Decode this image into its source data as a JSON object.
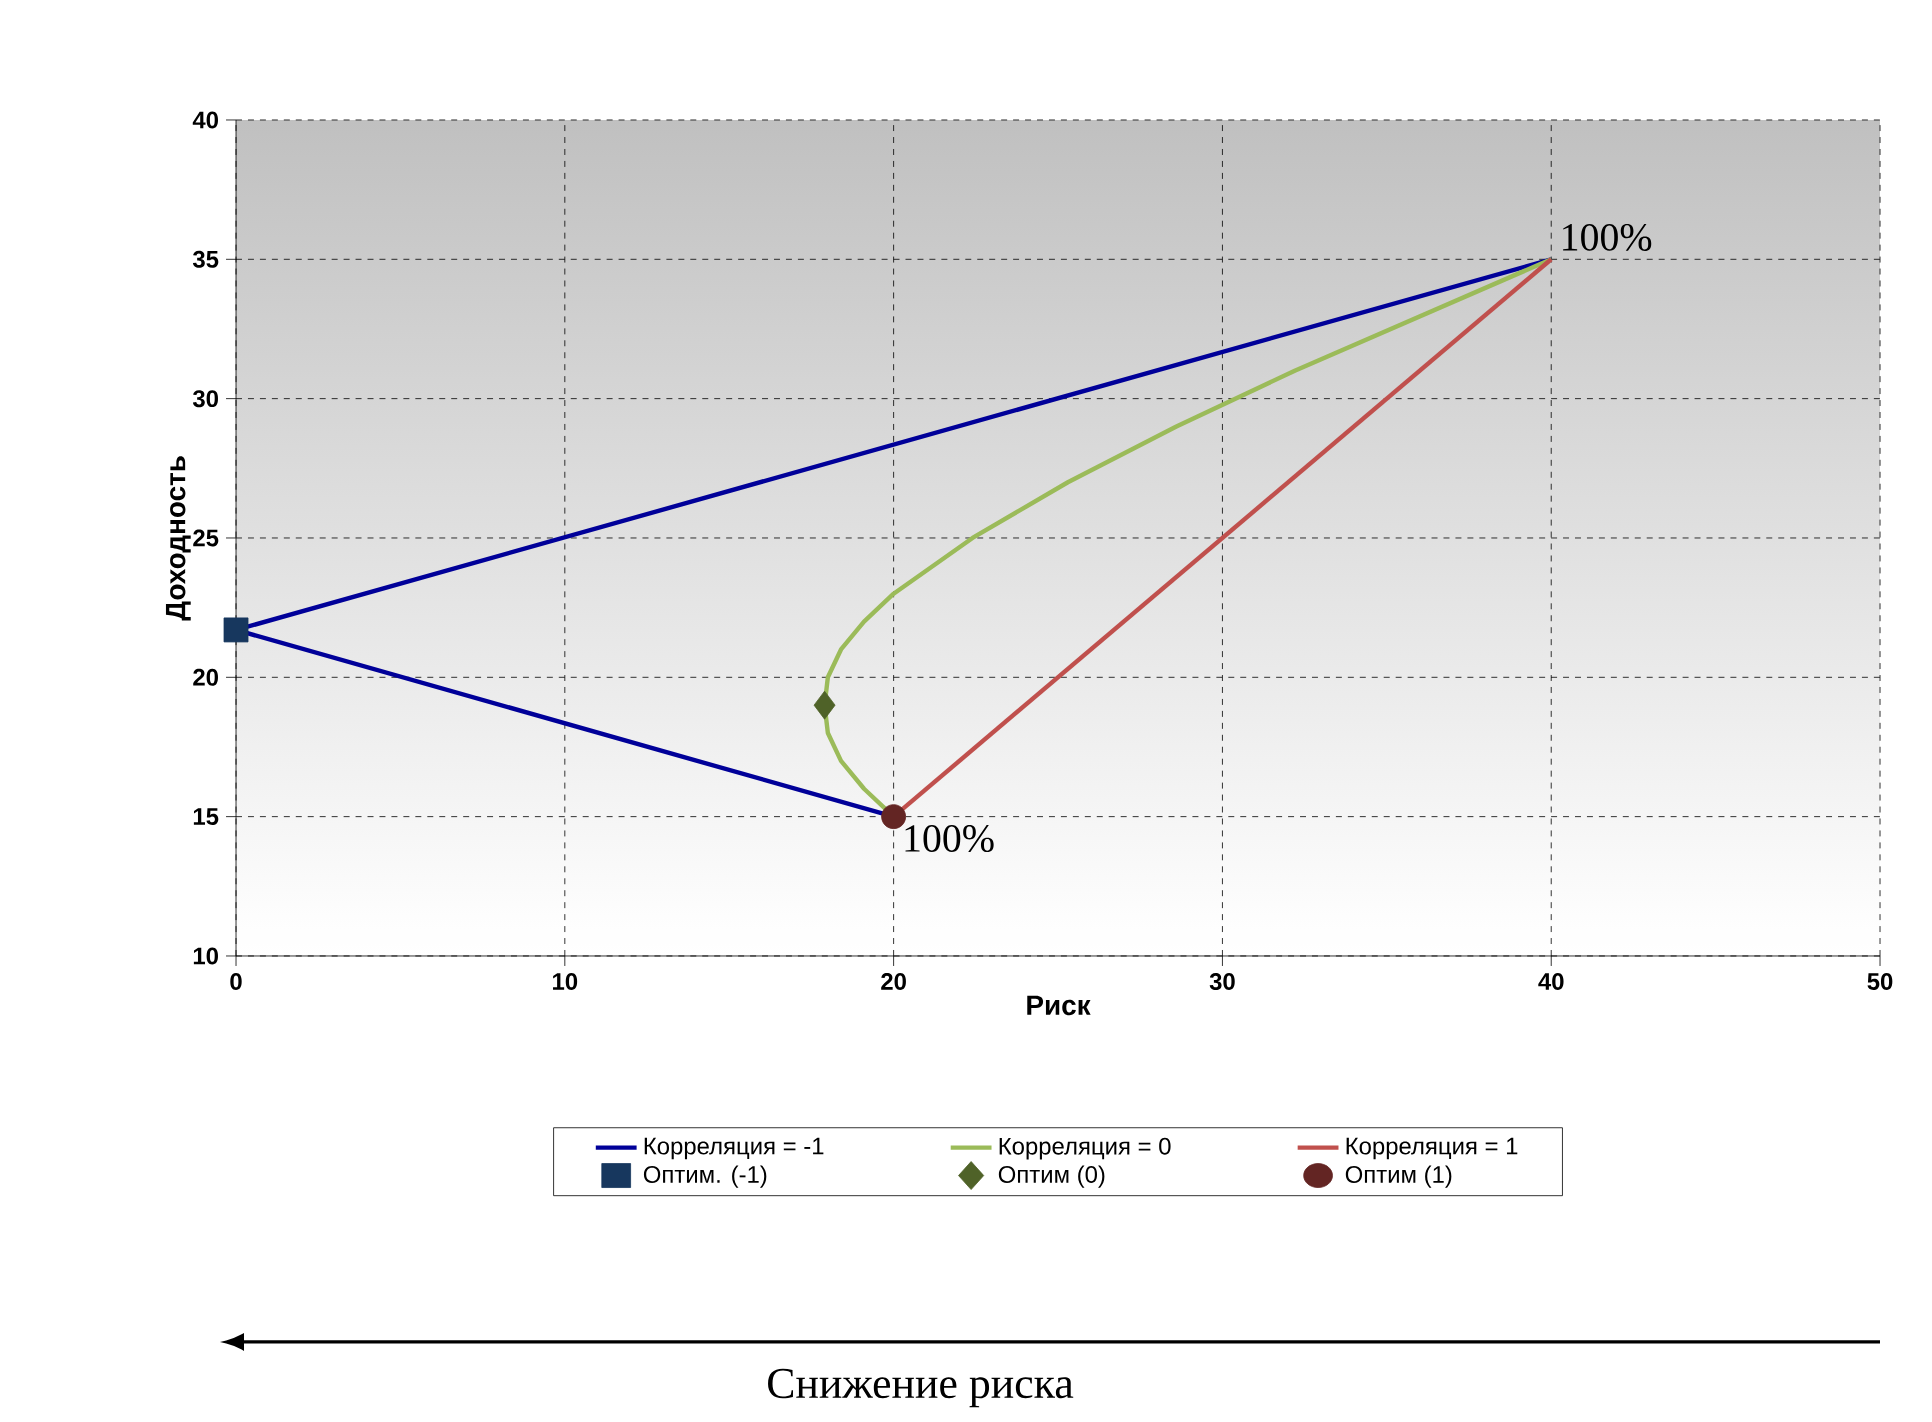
{
  "chart_data": {
    "type": "line",
    "xlabel": "Риск",
    "ylabel": "Доходность",
    "xlim": [
      0,
      50
    ],
    "ylim": [
      10,
      40
    ],
    "xticks": [
      0,
      10,
      20,
      30,
      40,
      50
    ],
    "yticks": [
      10,
      15,
      20,
      25,
      30,
      35,
      40
    ],
    "grid": true,
    "legend": "bottom",
    "series": [
      {
        "name": "Корреляция = -1",
        "type": "line",
        "marker": "none",
        "line_style": "solid",
        "color": "#000099",
        "x": [
          20,
          0,
          40
        ],
        "values": [
          15,
          21.7,
          35
        ]
      },
      {
        "name": "Корреляция = 0",
        "type": "line",
        "marker": "none",
        "line_style": "solid",
        "color": "#9bbb59",
        "x": [
          20,
          19.1,
          18.4,
          18.0,
          17.9,
          18.0,
          18.4,
          19.1,
          20,
          22.4,
          25.3,
          28.6,
          32.2,
          36.1,
          40
        ],
        "values": [
          15,
          16,
          17,
          18,
          19,
          20,
          21,
          22,
          23,
          25,
          27,
          29,
          31,
          33,
          35
        ]
      },
      {
        "name": "Корреляция = 1",
        "type": "line",
        "marker": "none",
        "line_style": "solid",
        "color": "#c0504d",
        "x": [
          20,
          40
        ],
        "values": [
          15,
          35
        ]
      },
      {
        "name": "Оптим. (-1)",
        "type": "scatter",
        "marker": "square",
        "color": "#17375e",
        "x": [
          0
        ],
        "values": [
          21.7
        ]
      },
      {
        "name": "Оптим (0)",
        "type": "scatter",
        "marker": "diamond",
        "color": "#4f6228",
        "x": [
          17.9
        ],
        "values": [
          19
        ]
      },
      {
        "name": "Оптим (1)",
        "type": "scatter",
        "marker": "circle",
        "color": "#632523",
        "x": [
          20
        ],
        "values": [
          15
        ]
      }
    ],
    "annotations": [
      {
        "text": "100%",
        "x": 40,
        "y": 35
      },
      {
        "text": "100%",
        "x": 20,
        "y": 15
      },
      "Снижение риска"
    ]
  }
}
